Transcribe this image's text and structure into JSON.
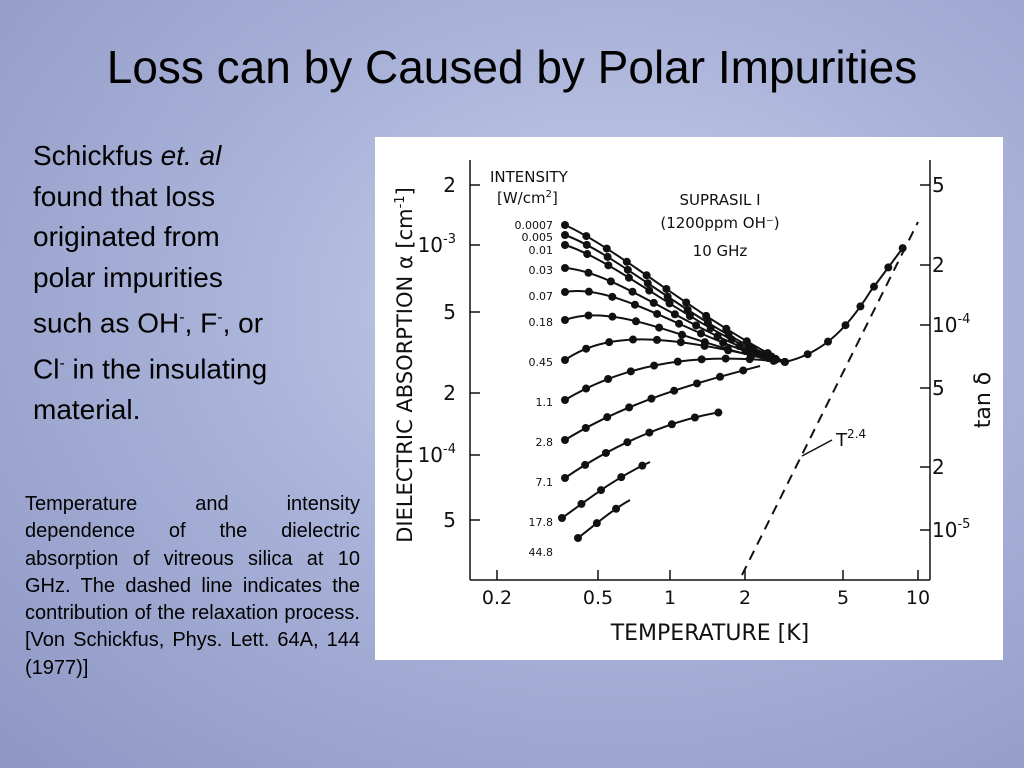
{
  "title": "Loss can by Caused by Polar Impurities",
  "body": {
    "lines": [
      [
        {
          "text": "Schickfus "
        },
        {
          "text": "et. al",
          "style": "italic"
        }
      ],
      [
        {
          "text": "found that loss"
        }
      ],
      [
        {
          "text": "originated from"
        }
      ],
      [
        {
          "text": "polar impurities"
        }
      ],
      [
        {
          "text": "such as OH"
        },
        {
          "text": "-",
          "style": "sup"
        },
        {
          "text": ", F"
        },
        {
          "text": "-",
          "style": "sup"
        },
        {
          "text": ", or"
        }
      ],
      [
        {
          "text": "Cl"
        },
        {
          "text": "-",
          "style": "sup"
        },
        {
          "text": " in the insulating"
        }
      ],
      [
        {
          "text": "material."
        }
      ]
    ]
  },
  "caption": "Temperature and intensity dependence of the dielectric absorption of vitreous silica at 10 GHz.  The dashed line indicates the contribution of the relaxation process.  [Von Schickfus, Phys. Lett. 64A, 144 (1977)]",
  "figure": {
    "y_label": {
      "text": "DIELECTRIC   ABSORPTION α [cm",
      "sup": "-1",
      "end": "]"
    },
    "y2_label": "tan δ",
    "x_label": "TEMPERATURE [K]",
    "legend_title": "INTENSITY",
    "legend_unit": {
      "text": "[W/cm",
      "sup": "2",
      "end": "]"
    },
    "sample": [
      "SUPRASIL I",
      "(1200ppm OH⁻)",
      "10 GHz"
    ],
    "intensities": [
      "0.0007",
      "0.005",
      "0.01",
      "0.03",
      "0.07",
      "0.18",
      "0.45",
      "1.1",
      "2.8",
      "7.1",
      "17.8",
      "44.8"
    ],
    "xticks": [
      "0.2",
      "0.5",
      "1",
      "2",
      "5",
      "10"
    ],
    "yticks": [
      {
        "base": "2"
      },
      {
        "base": "10",
        "exp": "-3"
      },
      {
        "base": "5"
      },
      {
        "base": "2"
      },
      {
        "base": "10",
        "exp": "-4"
      },
      {
        "base": "5"
      }
    ],
    "y2ticks": [
      {
        "base": "5"
      },
      {
        "base": "2"
      },
      {
        "base": "10",
        "exp": "-4"
      },
      {
        "base": "5"
      },
      {
        "base": "2"
      },
      {
        "base": "10",
        "exp": "-5"
      }
    ],
    "annotation": {
      "base": "T",
      "exp": "2.4"
    }
  }
}
